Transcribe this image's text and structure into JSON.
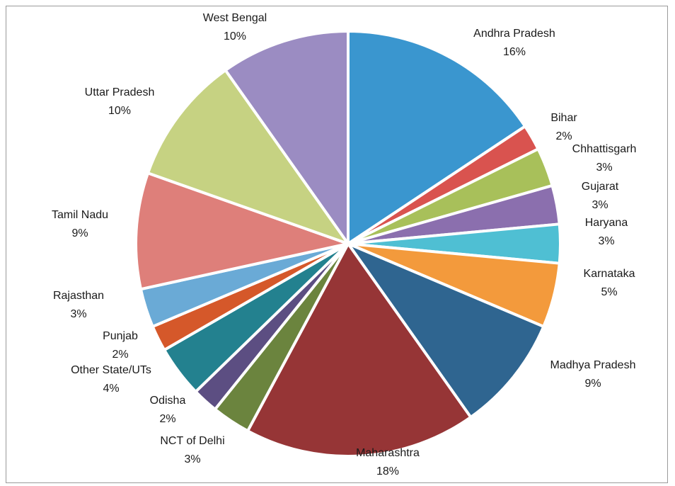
{
  "chart_data": {
    "type": "pie",
    "title": "",
    "slices": [
      {
        "label": "Andhra Pradesh",
        "value": 16,
        "display": "16%",
        "color": "#3a96cf"
      },
      {
        "label": "Bihar",
        "value": 2,
        "display": "2%",
        "color": "#d9534f"
      },
      {
        "label": "Chhattisgarh",
        "value": 3,
        "display": "3%",
        "color": "#a8c05a"
      },
      {
        "label": "Gujarat",
        "value": 3,
        "display": "3%",
        "color": "#8b6fae"
      },
      {
        "label": "Haryana",
        "value": 3,
        "display": "3%",
        "color": "#4fbfd3"
      },
      {
        "label": "Karnataka",
        "value": 5,
        "display": "5%",
        "color": "#f39a3c"
      },
      {
        "label": "Madhya Pradesh",
        "value": 9,
        "display": "9%",
        "color": "#2f6590"
      },
      {
        "label": "Maharashtra",
        "value": 18,
        "display": "18%",
        "color": "#963536"
      },
      {
        "label": "NCT of Delhi",
        "value": 3,
        "display": "3%",
        "color": "#6b843e"
      },
      {
        "label": "Odisha",
        "value": 2,
        "display": "2%",
        "color": "#5c4e82"
      },
      {
        "label": "Other State/UTs",
        "value": 4,
        "display": "4%",
        "color": "#23818f"
      },
      {
        "label": "Punjab",
        "value": 2,
        "display": "2%",
        "color": "#d5582a"
      },
      {
        "label": "Rajasthan",
        "value": 3,
        "display": "3%",
        "color": "#6aaad6"
      },
      {
        "label": "Tamil Nadu",
        "value": 9,
        "display": "9%",
        "color": "#de7f7a"
      },
      {
        "label": "Uttar Pradesh",
        "value": 10,
        "display": "10%",
        "color": "#c6d282"
      },
      {
        "label": "West Bengal",
        "value": 10,
        "display": "10%",
        "color": "#9b8cc2"
      }
    ]
  }
}
